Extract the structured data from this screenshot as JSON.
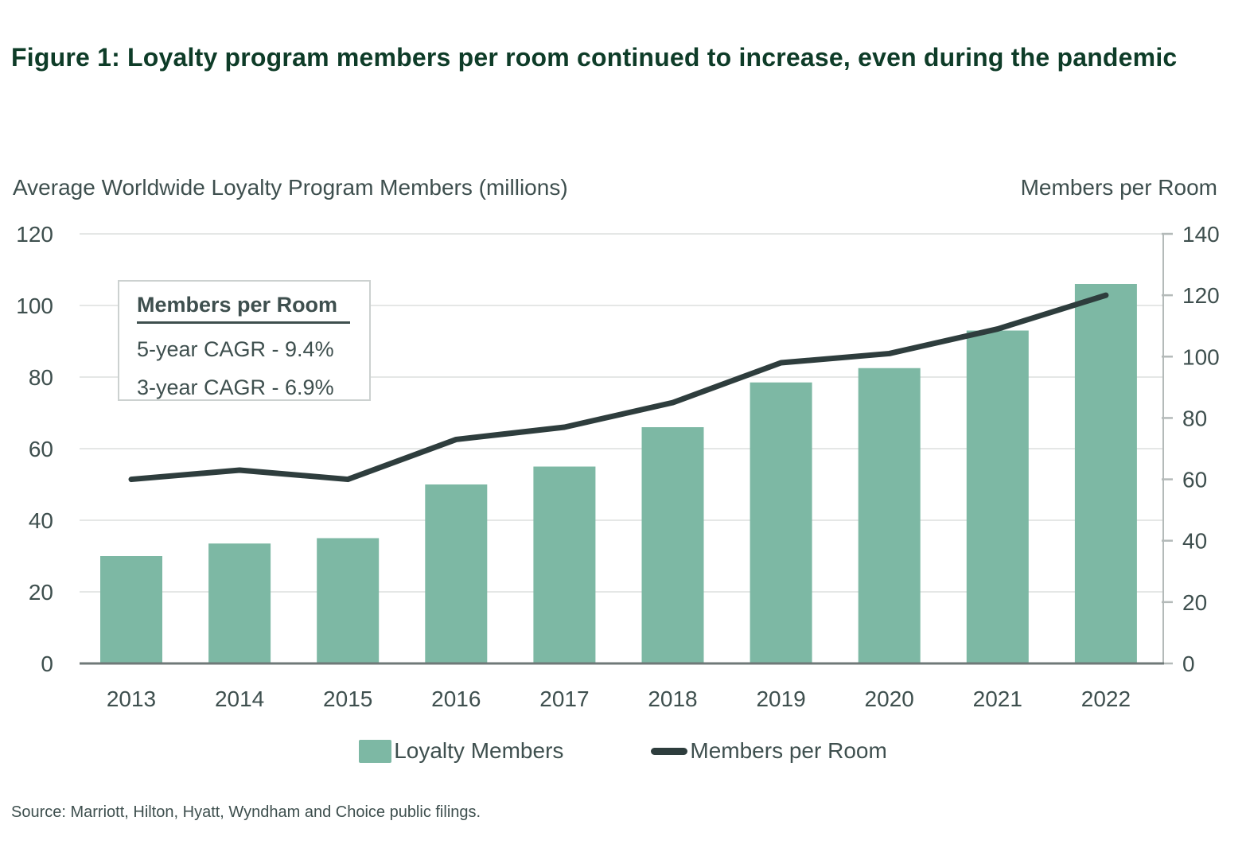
{
  "figure": {
    "title": "Figure 1: Loyalty program members per room continued to increase, even during the pandemic",
    "source": "Source: Marriott, Hilton, Hyatt, Wyndham and Choice public filings."
  },
  "annotation": {
    "title": "Members per Room",
    "line1": "5-year CAGR - 9.4%",
    "line2": "3-year CAGR - 6.9%"
  },
  "colors": {
    "bg": "#ffffff",
    "title": "#0e3c28",
    "text": "#3e4f4e",
    "bar": "#7db8a4",
    "line": "#2e3d3d",
    "gridline": "#e5e7e6",
    "baseline": "#6f7978",
    "spine": "#b4bab9",
    "boxborder": "#ccd1d0"
  },
  "chart_data": {
    "type": "bar+line dual-axis",
    "categories": [
      "2013",
      "2014",
      "2015",
      "2016",
      "2017",
      "2018",
      "2019",
      "2020",
      "2021",
      "2022"
    ],
    "series": [
      {
        "name": "Loyalty Members",
        "type": "bar",
        "axis": "left",
        "values": [
          30,
          33.5,
          35,
          50,
          55,
          66,
          78.5,
          82.5,
          93,
          106
        ]
      },
      {
        "name": "Members per Room",
        "type": "line",
        "axis": "right",
        "values": [
          60,
          63,
          60,
          73,
          77,
          85,
          98,
          101,
          109,
          120
        ]
      }
    ],
    "left_axis": {
      "title": "Average Worldwide Loyalty Program Members (millions)",
      "min": 0,
      "max": 120,
      "ticks": [
        0,
        20,
        40,
        60,
        80,
        100,
        120
      ]
    },
    "right_axis": {
      "title": "Members per Room",
      "min": 0,
      "max": 140,
      "ticks": [
        0,
        20,
        40,
        60,
        80,
        100,
        120,
        140
      ]
    },
    "grid": "horizontal",
    "legend_position": "bottom-center"
  }
}
